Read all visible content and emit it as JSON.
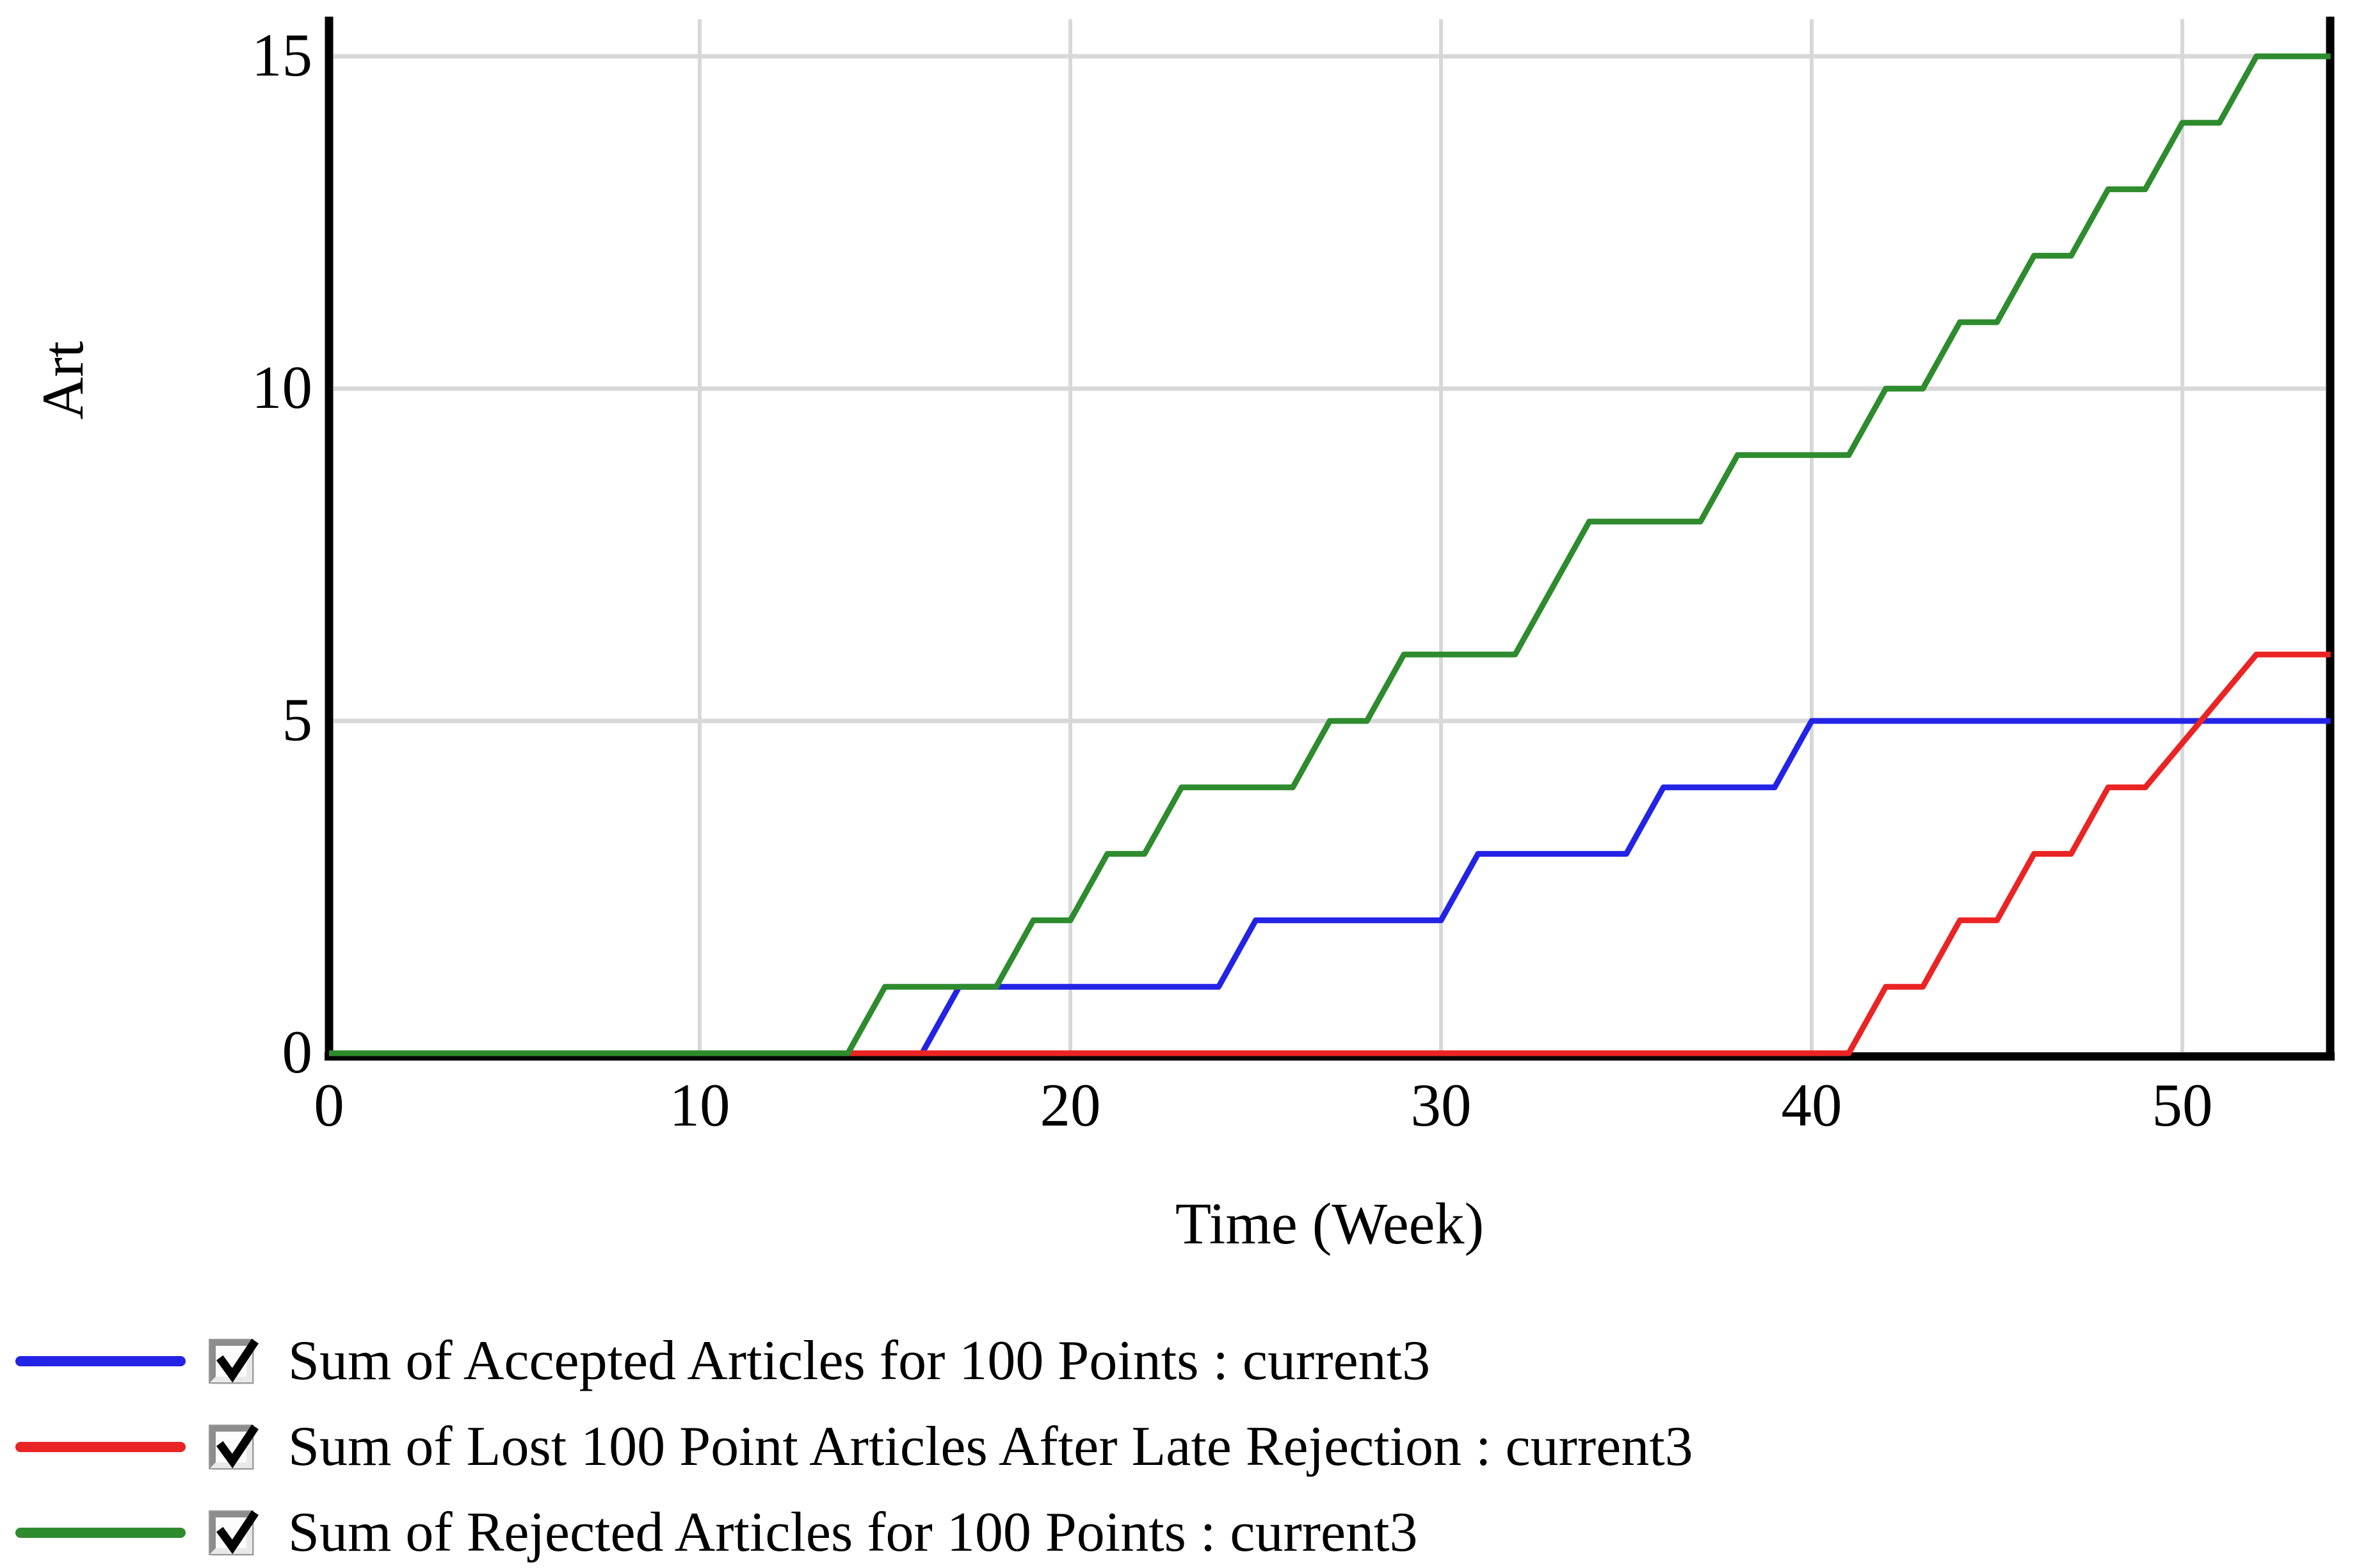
{
  "page": {
    "background": "#ffffff"
  },
  "legend": {
    "items": [
      {
        "label": "Sum of Accepted Articles for 100 Points : current3",
        "color": "#2323e6",
        "checked": true
      },
      {
        "label": "Sum of Lost 100 Point Articles After Late Rejection : current3",
        "color": "#ea2424",
        "checked": true
      },
      {
        "label": "Sum of Rejected Articles for 100 Points : current3",
        "color": "#2e8b2e",
        "checked": true
      }
    ]
  },
  "chart_data": {
    "type": "line",
    "subtype": "step-sampled-weekly",
    "title": "",
    "xlabel": "Time (Week)",
    "ylabel": "Art",
    "xlim": [
      0,
      54
    ],
    "ylim": [
      0,
      15
    ],
    "x_ticks": [
      0,
      10,
      20,
      30,
      40,
      50
    ],
    "y_ticks": [
      0,
      5,
      10,
      15
    ],
    "grid": true,
    "gridline_color": "#d8d8d8",
    "axis_color": "#000000",
    "legend_position": "below-left",
    "series": [
      {
        "name": "Sum of Accepted Articles for 100 Points : current3",
        "color": "#2323e6",
        "points": [
          [
            0,
            0
          ],
          [
            16,
            0
          ],
          [
            17,
            1
          ],
          [
            24,
            1
          ],
          [
            25,
            2
          ],
          [
            30,
            2
          ],
          [
            31,
            3
          ],
          [
            35,
            3
          ],
          [
            36,
            4
          ],
          [
            39,
            4
          ],
          [
            40,
            5
          ],
          [
            54,
            5
          ]
        ]
      },
      {
        "name": "Sum of Lost 100 Point Articles After Late Rejection : current3",
        "color": "#ea2424",
        "points": [
          [
            0,
            0
          ],
          [
            41,
            0
          ],
          [
            42,
            1
          ],
          [
            43,
            1
          ],
          [
            44,
            2
          ],
          [
            45,
            2
          ],
          [
            46,
            3
          ],
          [
            47,
            3
          ],
          [
            48,
            4
          ],
          [
            49,
            4
          ],
          [
            52,
            6
          ],
          [
            54,
            6
          ]
        ]
      },
      {
        "name": "Sum of Rejected Articles for 100 Points : current3",
        "color": "#2e8b2e",
        "points": [
          [
            0,
            0
          ],
          [
            14,
            0
          ],
          [
            15,
            1
          ],
          [
            18,
            1
          ],
          [
            19,
            2
          ],
          [
            20,
            2
          ],
          [
            21,
            3
          ],
          [
            22,
            3
          ],
          [
            23,
            4
          ],
          [
            26,
            4
          ],
          [
            27,
            5
          ],
          [
            28,
            5
          ],
          [
            29,
            6
          ],
          [
            32,
            6
          ],
          [
            34,
            8
          ],
          [
            37,
            8
          ],
          [
            38,
            9
          ],
          [
            41,
            9
          ],
          [
            42,
            10
          ],
          [
            43,
            10
          ],
          [
            44,
            11
          ],
          [
            45,
            11
          ],
          [
            46,
            12
          ],
          [
            47,
            12
          ],
          [
            48,
            13
          ],
          [
            49,
            13
          ],
          [
            50,
            14
          ],
          [
            51,
            14
          ],
          [
            52,
            15
          ],
          [
            54,
            15
          ]
        ]
      }
    ]
  }
}
